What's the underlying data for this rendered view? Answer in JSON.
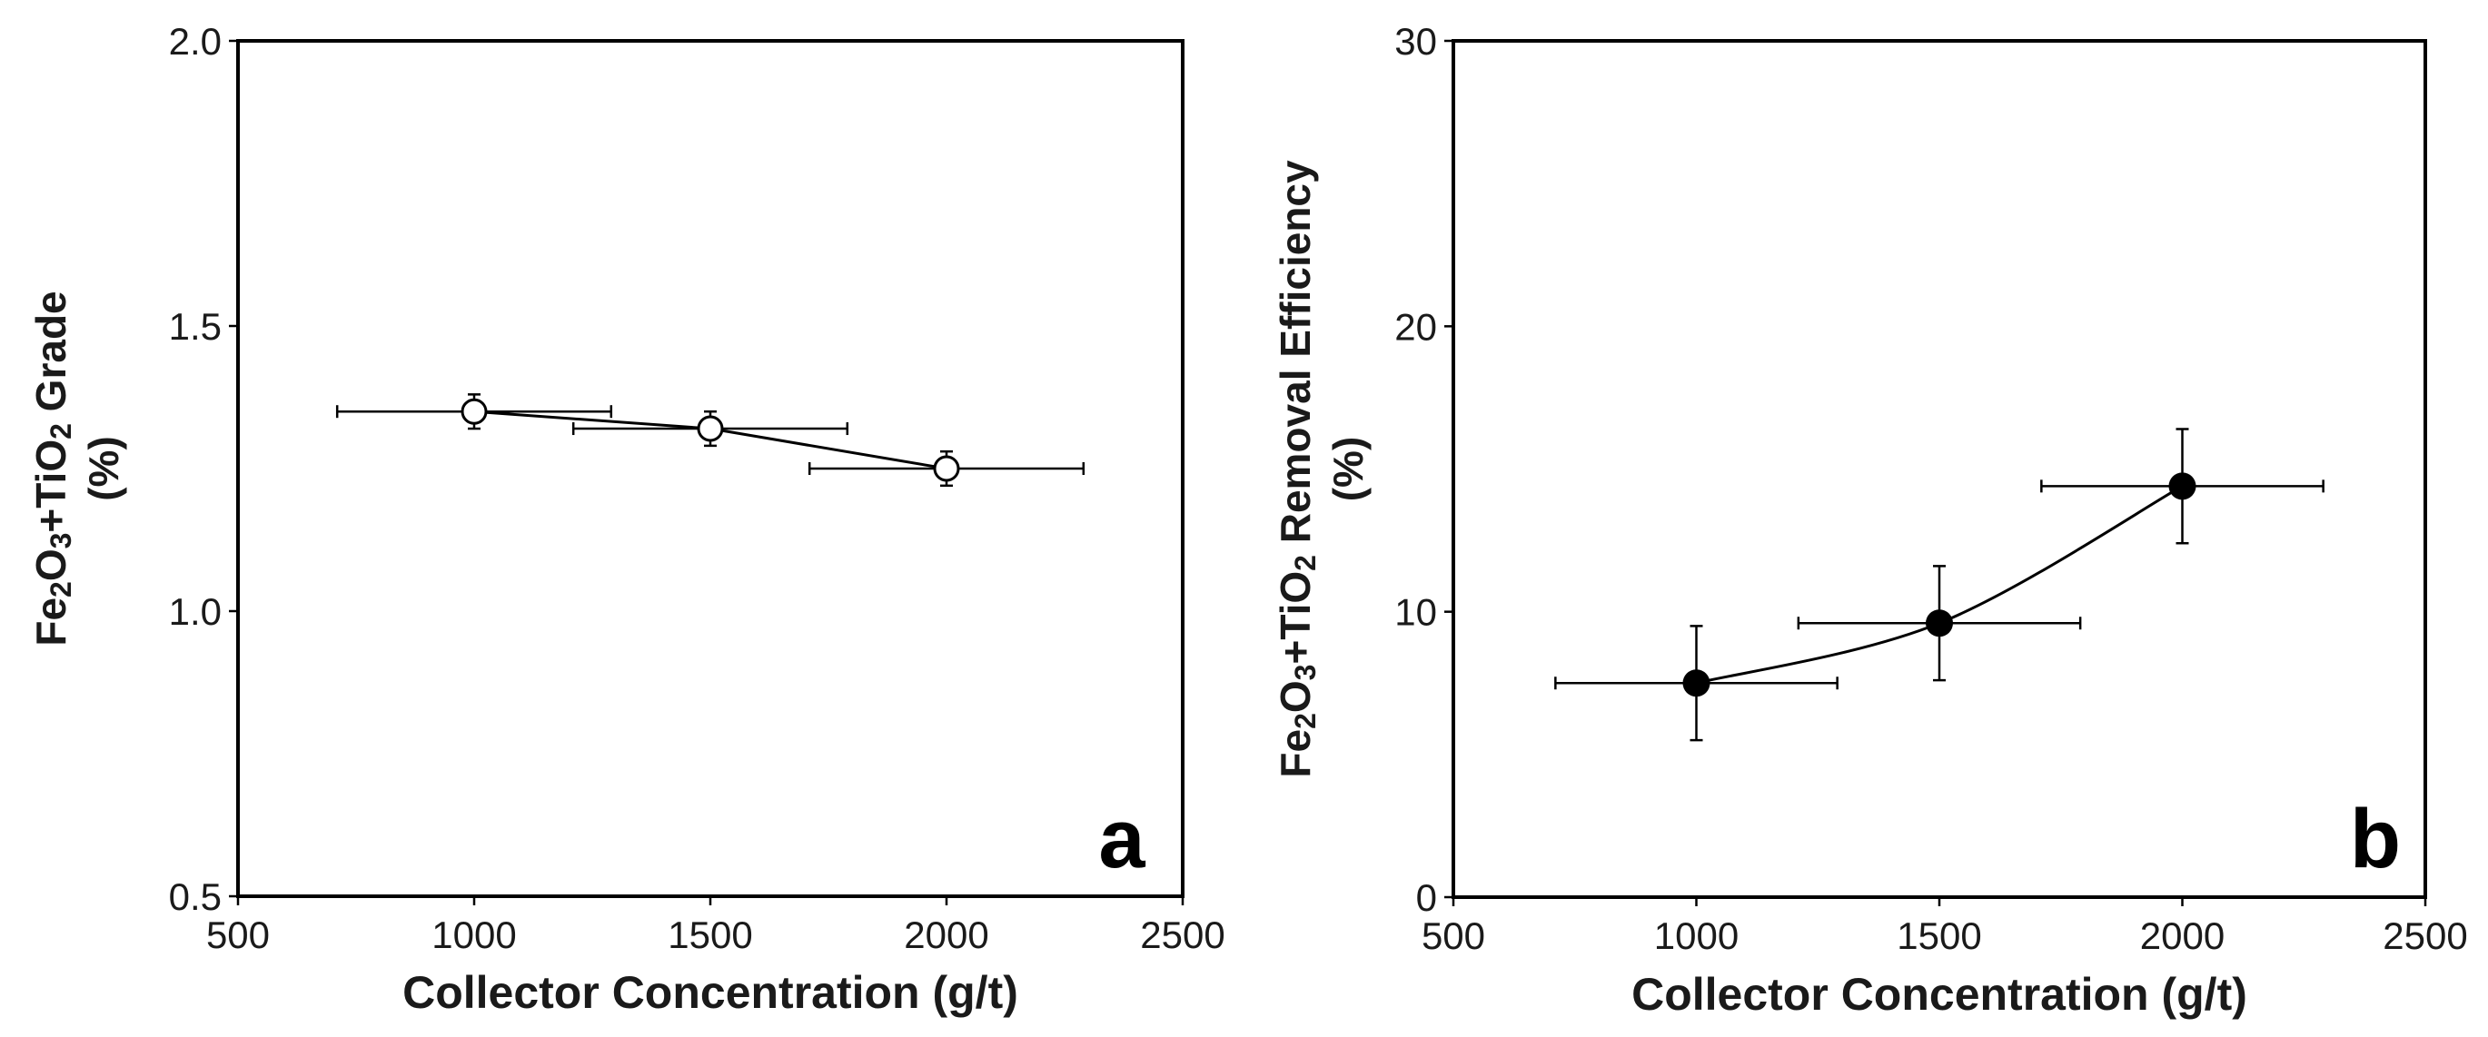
{
  "chart_data": [
    {
      "type": "line",
      "panel_label": "a",
      "xlabel": "Collector Concentration (g/t)",
      "ylabel_line1": {
        "part1": "Fe",
        "sub1": "2",
        "part2": "O",
        "sub2": "3",
        "part3": "+TiO",
        "sub3": "2",
        "part4": " Grade"
      },
      "ylabel_line2": "(%)",
      "xlim": [
        500,
        2500
      ],
      "ylim": [
        0.5,
        2.0
      ],
      "xticks": [
        "500",
        "1000",
        "1500",
        "2000",
        "2500"
      ],
      "yticks": [
        "0.5",
        "1.0",
        "1.5",
        "2.0"
      ],
      "marker": "open-circle",
      "series": [
        {
          "name": "Fe2O3+TiO2 Grade",
          "x": [
            1000,
            1500,
            2000
          ],
          "y": [
            1.35,
            1.32,
            1.25
          ],
          "xerr": [
            290,
            290,
            290
          ],
          "yerr": [
            0.03,
            0.03,
            0.03
          ]
        }
      ]
    },
    {
      "type": "line",
      "panel_label": "b",
      "xlabel": "Collector Concentration (g/t)",
      "ylabel_line1": {
        "part1": "Fe",
        "sub1": "2",
        "part2": "O",
        "sub2": "3",
        "part3": "+TiO",
        "sub3": "2",
        "part4": " Removal Efficiency"
      },
      "ylabel_line2": "(%)",
      "xlim": [
        500,
        2500
      ],
      "ylim": [
        0,
        30
      ],
      "xticks": [
        "500",
        "1000",
        "1500",
        "2000",
        "2500"
      ],
      "yticks": [
        "0",
        "10",
        "20",
        "30"
      ],
      "marker": "filled-circle",
      "series": [
        {
          "name": "Fe2O3+TiO2 Removal Efficiency",
          "x": [
            1000,
            1500,
            2000
          ],
          "y": [
            7.5,
            9.6,
            14.4
          ],
          "xerr": [
            290,
            290,
            290
          ],
          "yerr": [
            2.0,
            2.0,
            2.0
          ]
        }
      ]
    }
  ]
}
